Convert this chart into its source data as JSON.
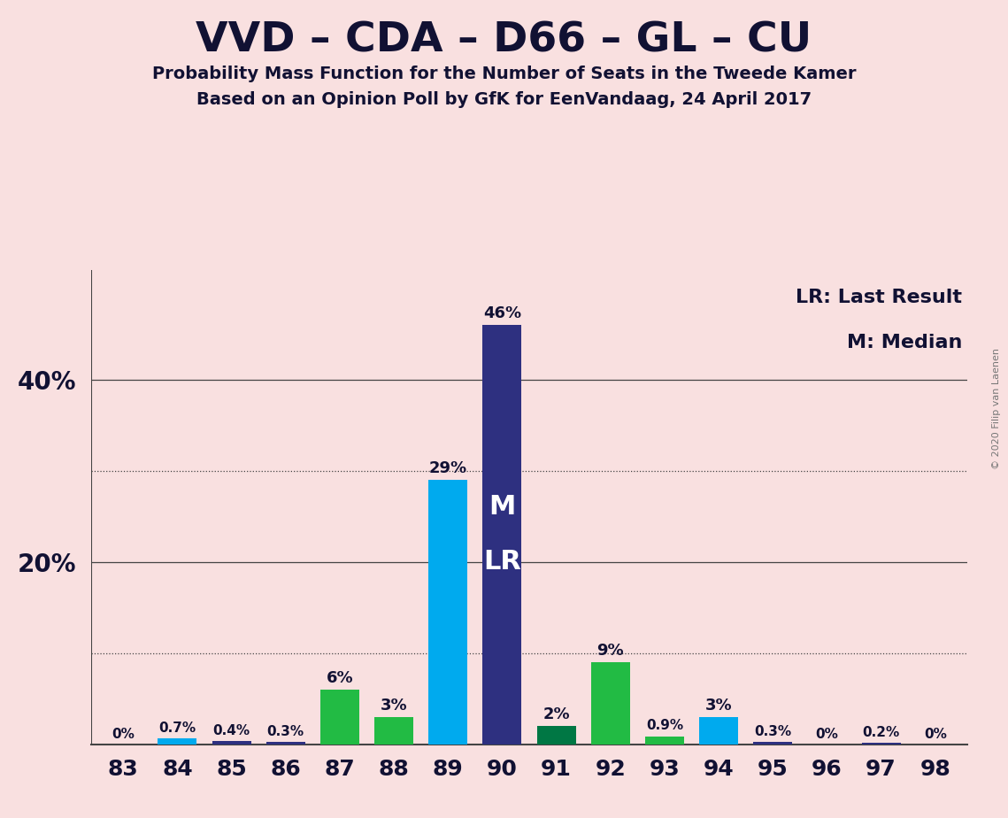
{
  "title": "VVD – CDA – D66 – GL – CU",
  "subtitle1": "Probability Mass Function for the Number of Seats in the Tweede Kamer",
  "subtitle2": "Based on an Opinion Poll by GfK for EenVandaag, 24 April 2017",
  "copyright": "© 2020 Filip van Laenen",
  "legend_lr": "LR: Last Result",
  "legend_m": "M: Median",
  "background_color": "#f9e0e0",
  "categories": [
    83,
    84,
    85,
    86,
    87,
    88,
    89,
    90,
    91,
    92,
    93,
    94,
    95,
    96,
    97,
    98
  ],
  "values": [
    0.0,
    0.7,
    0.4,
    0.3,
    6.0,
    3.0,
    29.0,
    46.0,
    2.0,
    9.0,
    0.9,
    3.0,
    0.3,
    0.0,
    0.2,
    0.0
  ],
  "labels": [
    "0%",
    "0.7%",
    "0.4%",
    "0.3%",
    "6%",
    "3%",
    "29%",
    "46%",
    "2%",
    "9%",
    "0.9%",
    "3%",
    "0.3%",
    "0%",
    "0.2%",
    "0%"
  ],
  "bar_colors": [
    "#2e3080",
    "#00aaee",
    "#2e3080",
    "#2e3080",
    "#22bb44",
    "#22bb44",
    "#00aaee",
    "#2e3080",
    "#007744",
    "#22bb44",
    "#22bb44",
    "#00aaee",
    "#2e3080",
    "#2e3080",
    "#2e3080",
    "#2e3080"
  ],
  "median_seat": 90,
  "lr_seat": 90,
  "bar_label_color": "#111133",
  "inbar_label_color": "#ffffff",
  "ylim": [
    0,
    52
  ],
  "solid_gridlines": [
    20,
    40
  ],
  "dotted_gridlines": [
    10,
    30
  ]
}
